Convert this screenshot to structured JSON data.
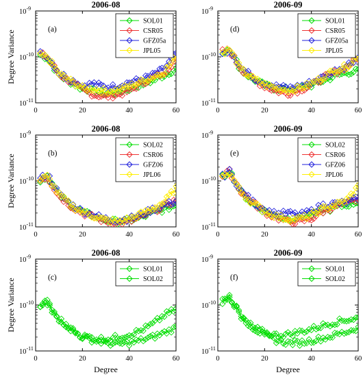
{
  "figure": {
    "ylabel": "Degree Variance",
    "xlabel": "Degree"
  },
  "colors": {
    "SOL01": "#00dd00",
    "SOL02": "#00dd00",
    "CSR05": "#ee3333",
    "CSR06": "#ee3333",
    "GFZ05a": "#2222dd",
    "GFZ06": "#2222dd",
    "JPL05": "#ffee00",
    "JPL06": "#ffee00"
  },
  "chart_data": [
    {
      "id": "a",
      "type": "line",
      "title": "2006-08",
      "panel_label": "(a)",
      "xlim": [
        0,
        60
      ],
      "ylim": [
        1e-11,
        1e-09
      ],
      "yscale": "log",
      "xticks": [
        0,
        20,
        40,
        60
      ],
      "yticks": [
        {
          "base": "10",
          "exp": "-9"
        },
        {
          "base": "10",
          "exp": "-10"
        },
        {
          "base": "10",
          "exp": "-11"
        }
      ],
      "legend": [
        "SOL01",
        "CSR05",
        "GFZ05a",
        "JPL05"
      ],
      "x": [
        2,
        5,
        10,
        15,
        20,
        25,
        30,
        35,
        40,
        45,
        50,
        55,
        60
      ],
      "series": [
        {
          "name": "SOL01",
          "values": [
            1.1e-10,
            9.5e-11,
            4e-11,
            2.8e-11,
            2e-11,
            1.8e-11,
            1.6e-11,
            1.7e-11,
            2e-11,
            2.5e-11,
            3e-11,
            4e-11,
            5.5e-11
          ]
        },
        {
          "name": "CSR05",
          "values": [
            1.15e-10,
            1e-10,
            4.2e-11,
            2.9e-11,
            1.9e-11,
            1.5e-11,
            1.35e-11,
            1.5e-11,
            1.8e-11,
            2.6e-11,
            3.5e-11,
            4.5e-11,
            9e-11
          ]
        },
        {
          "name": "GFZ05a",
          "values": [
            1.2e-10,
            1.05e-10,
            4.5e-11,
            3.2e-11,
            2.4e-11,
            2.6e-11,
            2.2e-11,
            2.3e-11,
            2.8e-11,
            3.2e-11,
            4e-11,
            5.5e-11,
            1.2e-10
          ]
        },
        {
          "name": "JPL05",
          "values": [
            1.05e-10,
            1e-10,
            4.3e-11,
            3e-11,
            2.1e-11,
            2e-11,
            1.8e-11,
            1.9e-11,
            2.3e-11,
            2.9e-11,
            3.6e-11,
            4.8e-11,
            1e-10
          ]
        }
      ]
    },
    {
      "id": "d",
      "type": "line",
      "title": "2006-09",
      "panel_label": "(d)",
      "xlim": [
        0,
        60
      ],
      "ylim": [
        1e-11,
        1e-09
      ],
      "yscale": "log",
      "xticks": [
        0,
        20,
        40,
        60
      ],
      "yticks": [
        {
          "base": "10",
          "exp": "-9"
        },
        {
          "base": "10",
          "exp": "-10"
        },
        {
          "base": "10",
          "exp": "-11"
        }
      ],
      "legend": [
        "SOL01",
        "CSR05",
        "GFZ05a",
        "JPL05"
      ],
      "x": [
        2,
        5,
        10,
        15,
        20,
        25,
        30,
        35,
        40,
        45,
        50,
        55,
        60
      ],
      "series": [
        {
          "name": "SOL01",
          "values": [
            1.2e-10,
            1.6e-10,
            5e-11,
            3.3e-11,
            2.4e-11,
            2e-11,
            2e-11,
            2.1e-11,
            2.4e-11,
            3e-11,
            3.8e-11,
            4.5e-11,
            5e-11
          ]
        },
        {
          "name": "CSR05",
          "values": [
            1.3e-10,
            1.4e-10,
            5.5e-11,
            3.2e-11,
            2.3e-11,
            1.8e-11,
            1.6e-11,
            1.9e-11,
            2.4e-11,
            3.5e-11,
            4.5e-11,
            6e-11,
            9.5e-11
          ]
        },
        {
          "name": "GFZ05a",
          "values": [
            1.1e-10,
            1.5e-10,
            5.8e-11,
            3.6e-11,
            2.7e-11,
            2.3e-11,
            2.1e-11,
            2.3e-11,
            2.8e-11,
            3.6e-11,
            5e-11,
            6.5e-11,
            1e-10
          ]
        },
        {
          "name": "JPL05",
          "values": [
            1.25e-10,
            1.45e-10,
            5.3e-11,
            3.4e-11,
            2.5e-11,
            2.1e-11,
            1.9e-11,
            2.1e-11,
            2.6e-11,
            3.6e-11,
            5.2e-11,
            6.2e-11,
            1e-10
          ]
        }
      ]
    },
    {
      "id": "b",
      "type": "line",
      "title": "2006-08",
      "panel_label": "(b)",
      "xlim": [
        0,
        60
      ],
      "ylim": [
        1e-11,
        1e-09
      ],
      "yscale": "log",
      "xticks": [
        0,
        20,
        40,
        60
      ],
      "yticks": [
        {
          "base": "10",
          "exp": "-9"
        },
        {
          "base": "10",
          "exp": "-10"
        },
        {
          "base": "10",
          "exp": "-11"
        }
      ],
      "legend": [
        "SOL02",
        "CSR06",
        "GFZ06",
        "JPL06"
      ],
      "x": [
        2,
        5,
        10,
        15,
        20,
        25,
        30,
        35,
        40,
        45,
        50,
        55,
        60
      ],
      "series": [
        {
          "name": "SOL02",
          "values": [
            1e-10,
            1.3e-10,
            5e-11,
            3e-11,
            2.1e-11,
            1.7e-11,
            1.4e-11,
            1.3e-11,
            1.4e-11,
            1.6e-11,
            2e-11,
            2.4e-11,
            3e-11
          ]
        },
        {
          "name": "CSR06",
          "values": [
            1.1e-10,
            1.2e-10,
            4.8e-11,
            2.9e-11,
            2e-11,
            1.6e-11,
            1.3e-11,
            1.2e-11,
            1.3e-11,
            1.6e-11,
            2.2e-11,
            2.8e-11,
            3.8e-11
          ]
        },
        {
          "name": "GFZ06",
          "values": [
            1.1e-10,
            1.45e-10,
            5.2e-11,
            3.1e-11,
            2.2e-11,
            1.8e-11,
            1.5e-11,
            1.4e-11,
            1.5e-11,
            1.8e-11,
            2.4e-11,
            3e-11,
            3.6e-11
          ]
        },
        {
          "name": "JPL06",
          "values": [
            1.05e-10,
            1.25e-10,
            5e-11,
            3e-11,
            2.1e-11,
            1.7e-11,
            1.4e-11,
            1.3e-11,
            1.5e-11,
            1.9e-11,
            2.5e-11,
            3.5e-11,
            7e-11
          ]
        }
      ]
    },
    {
      "id": "e",
      "type": "line",
      "title": "2006-09",
      "panel_label": "(e)",
      "xlim": [
        0,
        60
      ],
      "ylim": [
        1e-11,
        1e-09
      ],
      "yscale": "log",
      "xticks": [
        0,
        20,
        40,
        60
      ],
      "yticks": [
        {
          "base": "10",
          "exp": "-9"
        },
        {
          "base": "10",
          "exp": "-10"
        },
        {
          "base": "10",
          "exp": "-11"
        }
      ],
      "legend": [
        "SOL02",
        "CSR06",
        "GFZ06",
        "JPL06"
      ],
      "x": [
        2,
        5,
        10,
        15,
        20,
        25,
        30,
        35,
        40,
        45,
        50,
        55,
        60
      ],
      "series": [
        {
          "name": "SOL02",
          "values": [
            1.2e-10,
            1.7e-10,
            5.5e-11,
            3.2e-11,
            2.2e-11,
            1.7e-11,
            1.5e-11,
            1.6e-11,
            1.8e-11,
            2.2e-11,
            2.6e-11,
            3e-11,
            3.5e-11
          ]
        },
        {
          "name": "CSR06",
          "values": [
            1.3e-10,
            1.6e-10,
            5.8e-11,
            3.4e-11,
            2.1e-11,
            1.6e-11,
            1.3e-11,
            1.3e-11,
            1.5e-11,
            2.2e-11,
            2.8e-11,
            3.2e-11,
            4e-11
          ]
        },
        {
          "name": "GFZ06",
          "values": [
            1.25e-10,
            1.6e-10,
            6e-11,
            3.5e-11,
            2.4e-11,
            1.9e-11,
            2e-11,
            1.8e-11,
            2.2e-11,
            3e-11,
            3.2e-11,
            3.4e-11,
            4.2e-11
          ]
        },
        {
          "name": "JPL06",
          "values": [
            1.2e-10,
            1.55e-10,
            5.6e-11,
            3.3e-11,
            2.2e-11,
            1.7e-11,
            1.5e-11,
            1.5e-11,
            1.8e-11,
            2.5e-11,
            3e-11,
            3.8e-11,
            7.5e-11
          ]
        }
      ]
    },
    {
      "id": "c",
      "type": "line",
      "title": "2006-08",
      "panel_label": "(c)",
      "xlim": [
        0,
        60
      ],
      "ylim": [
        1e-11,
        1e-09
      ],
      "yscale": "log",
      "xticks": [
        0,
        20,
        40,
        60
      ],
      "yticks": [
        {
          "base": "10",
          "exp": "-9"
        },
        {
          "base": "10",
          "exp": "-10"
        },
        {
          "base": "10",
          "exp": "-11"
        }
      ],
      "legend": [
        "SOL01",
        "SOL02"
      ],
      "x": [
        2,
        5,
        10,
        15,
        20,
        25,
        30,
        35,
        40,
        45,
        50,
        55,
        60
      ],
      "series": [
        {
          "name": "SOL01",
          "values": [
            1e-10,
            1.05e-10,
            4.5e-11,
            3e-11,
            2.1e-11,
            1.9e-11,
            1.8e-11,
            2e-11,
            2.3e-11,
            2.8e-11,
            3.8e-11,
            6e-11,
            8e-11
          ]
        },
        {
          "name": "SOL02",
          "values": [
            9e-11,
            1.3e-10,
            5e-11,
            3e-11,
            2e-11,
            1.7e-11,
            1.5e-11,
            1.4e-11,
            1.5e-11,
            1.7e-11,
            2e-11,
            2.5e-11,
            3.2e-11
          ]
        }
      ]
    },
    {
      "id": "f",
      "type": "line",
      "title": "2006-09",
      "panel_label": "(f)",
      "xlim": [
        0,
        60
      ],
      "ylim": [
        1e-11,
        1e-09
      ],
      "yscale": "log",
      "xticks": [
        0,
        20,
        40,
        60
      ],
      "yticks": [
        {
          "base": "10",
          "exp": "-9"
        },
        {
          "base": "10",
          "exp": "-10"
        },
        {
          "base": "10",
          "exp": "-11"
        }
      ],
      "legend": [
        "SOL01",
        "SOL02"
      ],
      "x": [
        2,
        5,
        10,
        15,
        20,
        25,
        30,
        35,
        40,
        45,
        50,
        55,
        60
      ],
      "series": [
        {
          "name": "SOL01",
          "values": [
            1.2e-10,
            1.6e-10,
            5.5e-11,
            3.3e-11,
            2.5e-11,
            2.2e-11,
            2.3e-11,
            2.6e-11,
            3e-11,
            3.6e-11,
            4.2e-11,
            4.8e-11,
            5.2e-11
          ]
        },
        {
          "name": "SOL02",
          "values": [
            1.3e-10,
            1.55e-10,
            5.5e-11,
            3.2e-11,
            2.2e-11,
            1.7e-11,
            1.5e-11,
            1.5e-11,
            1.7e-11,
            1.9e-11,
            2.2e-11,
            2.6e-11,
            3.2e-11
          ]
        }
      ]
    }
  ]
}
